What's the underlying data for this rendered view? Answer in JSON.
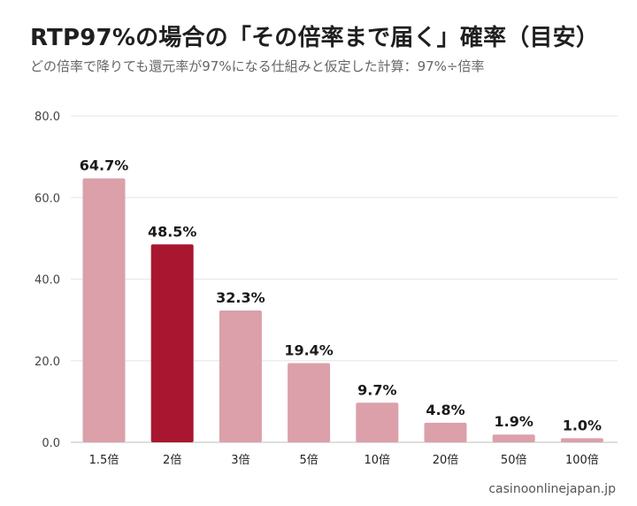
{
  "header": {
    "title": "RTP97%の場合の「その倍率まで届く」確率（目安）",
    "subtitle": "どの倍率で降りても還元率が97%になる仕組みと仮定した計算：97%÷倍率"
  },
  "footer": {
    "source": "casinoonlinejapan.jp"
  },
  "colors": {
    "bar": "#dba0aa",
    "highlight": "#a8172f",
    "grid": "#e6e6e6",
    "axis": "#bdbdbd"
  },
  "chart_data": {
    "type": "bar",
    "title": "RTP97%の場合の「その倍率まで届く」確率（目安）",
    "subtitle": "どの倍率で降りても還元率が97%になる仕組みと仮定した計算：97%÷倍率",
    "categories": [
      "1.5倍",
      "2倍",
      "3倍",
      "5倍",
      "10倍",
      "20倍",
      "50倍",
      "100倍"
    ],
    "values": [
      64.7,
      48.5,
      32.3,
      19.4,
      9.7,
      4.8,
      1.9,
      1.0
    ],
    "data_labels": [
      "64.7%",
      "48.5%",
      "32.3%",
      "19.4%",
      "9.7%",
      "4.8%",
      "1.9%",
      "1.0%"
    ],
    "highlight_category": "2倍",
    "yticks": [
      "0.0",
      "20.0",
      "40.0",
      "60.0",
      "80.0"
    ],
    "ylim": [
      0,
      80
    ],
    "xlabel": "",
    "ylabel": "",
    "grid": true,
    "legend": "none"
  }
}
